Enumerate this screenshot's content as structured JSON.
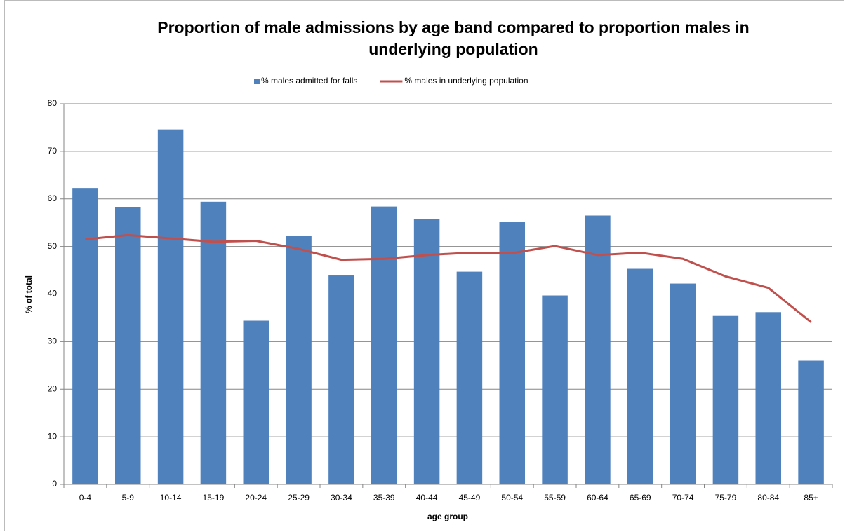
{
  "chart_data": {
    "type": "bar",
    "title": "Proportion of male admissions by age band compared to proportion males in underlying population",
    "x_label": "age group",
    "y_label": "% of total",
    "categories": [
      "0-4",
      "5-9",
      "10-14",
      "15-19",
      "20-24",
      "25-29",
      "30-34",
      "35-39",
      "40-44",
      "45-49",
      "50-54",
      "55-59",
      "60-64",
      "65-69",
      "70-74",
      "75-79",
      "80-84",
      "85+"
    ],
    "series": [
      {
        "name": "% males admitted for falls",
        "type": "bar",
        "color": "#4f81bd",
        "values": [
          62.3,
          58.2,
          74.6,
          59.4,
          34.4,
          52.2,
          43.9,
          58.4,
          55.8,
          44.7,
          55.1,
          39.7,
          56.5,
          45.3,
          42.2,
          35.4,
          36.2,
          26.0
        ]
      },
      {
        "name": "% males in underlying population",
        "type": "line",
        "color": "#c0504d",
        "values": [
          51.5,
          52.4,
          51.7,
          51.0,
          51.2,
          49.5,
          47.2,
          47.4,
          48.2,
          48.7,
          48.6,
          50.1,
          48.2,
          48.7,
          47.4,
          43.7,
          41.3,
          34.1
        ]
      }
    ],
    "ylim": [
      0,
      80
    ],
    "yticks": [
      0,
      10,
      20,
      30,
      40,
      50,
      60,
      70,
      80
    ],
    "grid": true,
    "legend": "top"
  }
}
